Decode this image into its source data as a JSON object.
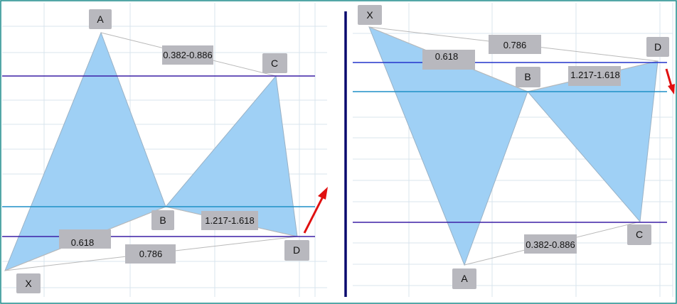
{
  "colors": {
    "frame": "#1a8a8a",
    "grid": "#d9e4ee",
    "pattern_fill": "#9fd0f5",
    "pattern_edge": "#9ab2c6",
    "connector": "#b9b9b9",
    "label_bg": "#b8b8be",
    "level_purple": "#3b1fa6",
    "level_teal": "#1f8fc7",
    "level_blue": "#2233cc",
    "divider": "#0a0a6e",
    "arrow": "#e01010"
  },
  "panels": [
    {
      "name": "bullish",
      "points": {
        "X": "X",
        "A": "A",
        "B": "B",
        "C": "C",
        "D": "D"
      },
      "ratios": {
        "xab": "0.618",
        "abc": "0.382-0.886",
        "bcd": "1.217-1.618",
        "xad": "0.786"
      },
      "arrow_direction": "up"
    },
    {
      "name": "bearish",
      "points": {
        "X": "X",
        "A": "A",
        "B": "B",
        "C": "C",
        "D": "D"
      },
      "ratios": {
        "xab": "0.618",
        "abc": "0.382-0.886",
        "bcd": "1.217-1.618",
        "xad": "0.786"
      },
      "arrow_direction": "down"
    }
  ]
}
